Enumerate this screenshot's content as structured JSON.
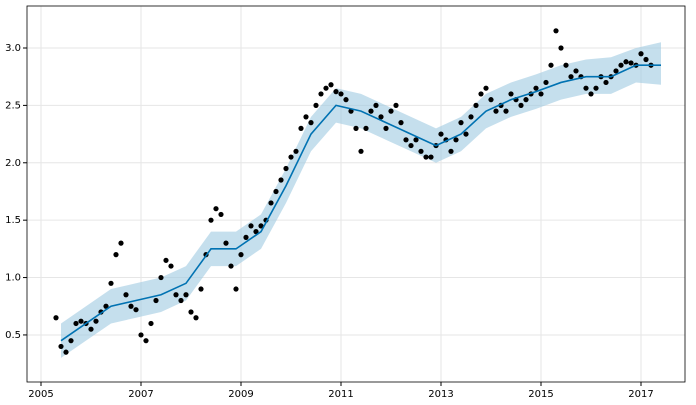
{
  "chart_data": {
    "type": "scatter",
    "x": [
      2005.3,
      2005.4,
      2005.5,
      2005.6,
      2005.7,
      2005.8,
      2005.9,
      2006.0,
      2006.1,
      2006.2,
      2006.3,
      2006.4,
      2006.5,
      2006.6,
      2006.7,
      2006.8,
      2006.9,
      2007.0,
      2007.1,
      2007.2,
      2007.3,
      2007.4,
      2007.5,
      2007.6,
      2007.7,
      2007.8,
      2007.9,
      2008.0,
      2008.1,
      2008.2,
      2008.3,
      2008.4,
      2008.5,
      2008.6,
      2008.7,
      2008.8,
      2008.9,
      2009.0,
      2009.1,
      2009.2,
      2009.3,
      2009.4,
      2009.5,
      2009.6,
      2009.7,
      2009.8,
      2009.9,
      2010.0,
      2010.1,
      2010.2,
      2010.3,
      2010.4,
      2010.5,
      2010.6,
      2010.7,
      2010.8,
      2010.9,
      2011.0,
      2011.1,
      2011.2,
      2011.3,
      2011.4,
      2011.5,
      2011.6,
      2011.7,
      2011.8,
      2011.9,
      2012.0,
      2012.1,
      2012.2,
      2012.3,
      2012.4,
      2012.5,
      2012.6,
      2012.7,
      2012.8,
      2012.9,
      2013.0,
      2013.1,
      2013.2,
      2013.3,
      2013.4,
      2013.5,
      2013.6,
      2013.7,
      2013.8,
      2013.9,
      2014.0,
      2014.1,
      2014.2,
      2014.3,
      2014.4,
      2014.5,
      2014.6,
      2014.7,
      2014.8,
      2014.9,
      2015.0,
      2015.1,
      2015.2,
      2015.3,
      2015.4,
      2015.5,
      2015.6,
      2015.7,
      2015.8,
      2015.9,
      2016.0,
      2016.1,
      2016.2,
      2016.3,
      2016.4,
      2016.5,
      2016.6,
      2016.7,
      2016.8,
      2016.9,
      2017.0,
      2017.1,
      2017.2
    ],
    "values": [
      0.65,
      0.4,
      0.35,
      0.45,
      0.6,
      0.62,
      0.6,
      0.55,
      0.62,
      0.7,
      0.75,
      0.95,
      1.2,
      1.3,
      0.85,
      0.75,
      0.72,
      0.5,
      0.45,
      0.6,
      0.8,
      1.0,
      1.15,
      1.1,
      0.85,
      0.8,
      0.85,
      0.7,
      0.65,
      0.9,
      1.2,
      1.5,
      1.6,
      1.55,
      1.3,
      1.1,
      0.9,
      1.2,
      1.35,
      1.45,
      1.4,
      1.45,
      1.5,
      1.65,
      1.75,
      1.85,
      1.95,
      2.05,
      2.1,
      2.3,
      2.4,
      2.35,
      2.5,
      2.6,
      2.65,
      2.68,
      2.62,
      2.6,
      2.55,
      2.45,
      2.3,
      2.1,
      2.3,
      2.45,
      2.5,
      2.4,
      2.3,
      2.45,
      2.5,
      2.35,
      2.2,
      2.15,
      2.2,
      2.1,
      2.05,
      2.05,
      2.15,
      2.25,
      2.2,
      2.1,
      2.2,
      2.35,
      2.25,
      2.4,
      2.5,
      2.6,
      2.65,
      2.55,
      2.45,
      2.5,
      2.45,
      2.6,
      2.55,
      2.5,
      2.55,
      2.6,
      2.65,
      2.6,
      2.7,
      2.85,
      3.15,
      3.0,
      2.85,
      2.75,
      2.8,
      2.75,
      2.65,
      2.6,
      2.65,
      2.75,
      2.7,
      2.75,
      2.8,
      2.85,
      2.88,
      2.87,
      2.85,
      2.95,
      2.9,
      2.85
    ],
    "color": "#000000",
    "forecast": {
      "x": [
        2005.4,
        2005.9,
        2006.4,
        2006.9,
        2007.4,
        2007.9,
        2008.4,
        2008.9,
        2009.4,
        2009.9,
        2010.4,
        2010.9,
        2011.4,
        2011.9,
        2012.4,
        2012.9,
        2013.4,
        2013.9,
        2014.4,
        2014.9,
        2015.4,
        2015.9,
        2016.4,
        2016.9,
        2017.4
      ],
      "values": [
        0.45,
        0.6,
        0.75,
        0.8,
        0.85,
        0.95,
        1.25,
        1.25,
        1.4,
        1.8,
        2.25,
        2.5,
        2.45,
        2.35,
        2.25,
        2.15,
        2.25,
        2.45,
        2.55,
        2.62,
        2.7,
        2.75,
        2.75,
        2.85,
        2.85
      ],
      "lower": [
        0.3,
        0.45,
        0.6,
        0.65,
        0.7,
        0.8,
        1.1,
        1.1,
        1.25,
        1.65,
        2.1,
        2.35,
        2.3,
        2.2,
        2.1,
        2.0,
        2.1,
        2.3,
        2.4,
        2.47,
        2.55,
        2.6,
        2.6,
        2.7,
        2.68
      ],
      "upper": [
        0.6,
        0.75,
        0.9,
        0.95,
        1.0,
        1.1,
        1.4,
        1.4,
        1.55,
        1.95,
        2.4,
        2.65,
        2.6,
        2.5,
        2.4,
        2.3,
        2.4,
        2.6,
        2.7,
        2.77,
        2.85,
        2.9,
        2.92,
        3.0,
        3.05
      ],
      "color": "#0072b2",
      "band_color": "#9ecae1"
    },
    "xlim": [
      2004.72,
      2017.88
    ],
    "ylim": [
      0.09,
      3.366
    ],
    "xticks": [
      2005,
      2007,
      2009,
      2011,
      2013,
      2015,
      2017
    ],
    "yticks": [
      0.5,
      {
        "value": 1,
        "label": "1.0"
      },
      1.5,
      {
        "value": 2,
        "label": "2.0"
      },
      2.5,
      {
        "value": 3,
        "label": "3.0"
      }
    ],
    "grid": true
  }
}
